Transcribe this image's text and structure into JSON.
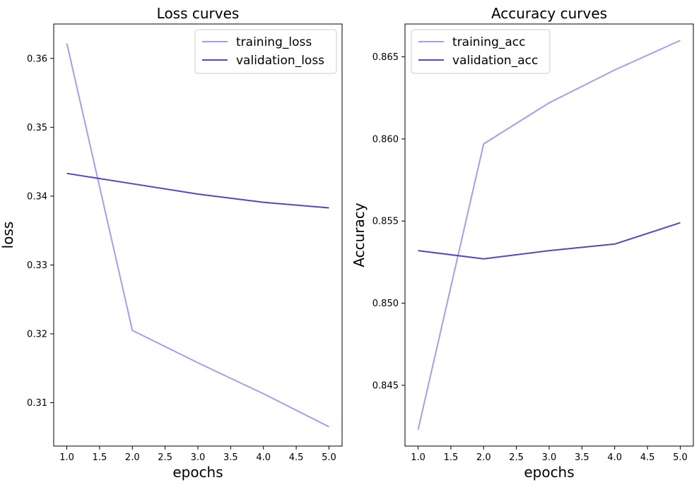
{
  "chart_data": [
    {
      "type": "line",
      "title": "Loss curves",
      "xlabel": "epochs",
      "ylabel": "loss",
      "x": [
        1,
        2,
        3,
        4,
        5
      ],
      "xlim": [
        0.8,
        5.2
      ],
      "ylim": [
        0.3037,
        0.365
      ],
      "xticks": [
        1.0,
        1.5,
        2.0,
        2.5,
        3.0,
        3.5,
        4.0,
        4.5,
        5.0
      ],
      "xtick_labels": [
        "1.0",
        "1.5",
        "2.0",
        "2.5",
        "3.0",
        "3.5",
        "4.0",
        "4.5",
        "5.0"
      ],
      "yticks": [
        0.31,
        0.32,
        0.33,
        0.34,
        0.35,
        0.36
      ],
      "ytick_labels": [
        "0.31",
        "0.32",
        "0.33",
        "0.34",
        "0.35",
        "0.36"
      ],
      "legend": "upper right",
      "grid": false,
      "series": [
        {
          "name": "training_loss",
          "color": "#a89bf7",
          "values": [
            0.3622,
            0.3205,
            0.3158,
            0.3113,
            0.3065
          ]
        },
        {
          "name": "validation_loss",
          "color": "#5a43c6",
          "values": [
            0.3433,
            0.3418,
            0.3403,
            0.3391,
            0.3383
          ]
        }
      ]
    },
    {
      "type": "line",
      "title": "Accuracy curves",
      "xlabel": "epochs",
      "ylabel": "Accuracy",
      "x": [
        1,
        2,
        3,
        4,
        5
      ],
      "xlim": [
        0.8,
        5.2
      ],
      "ylim": [
        0.8413,
        0.867
      ],
      "xticks": [
        1.0,
        1.5,
        2.0,
        2.5,
        3.0,
        3.5,
        4.0,
        4.5,
        5.0
      ],
      "xtick_labels": [
        "1.0",
        "1.5",
        "2.0",
        "2.5",
        "3.0",
        "3.5",
        "4.0",
        "4.5",
        "5.0"
      ],
      "yticks": [
        0.845,
        0.85,
        0.855,
        0.86,
        0.865
      ],
      "ytick_labels": [
        "0.845",
        "0.850",
        "0.855",
        "0.860",
        "0.865"
      ],
      "legend": "upper left",
      "grid": false,
      "series": [
        {
          "name": "training_acc",
          "color": "#a89bf7",
          "values": [
            0.8423,
            0.8597,
            0.8622,
            0.8642,
            0.866
          ]
        },
        {
          "name": "validation_acc",
          "color": "#5a43c6",
          "values": [
            0.8532,
            0.8527,
            0.8532,
            0.8536,
            0.8549
          ]
        }
      ]
    }
  ]
}
